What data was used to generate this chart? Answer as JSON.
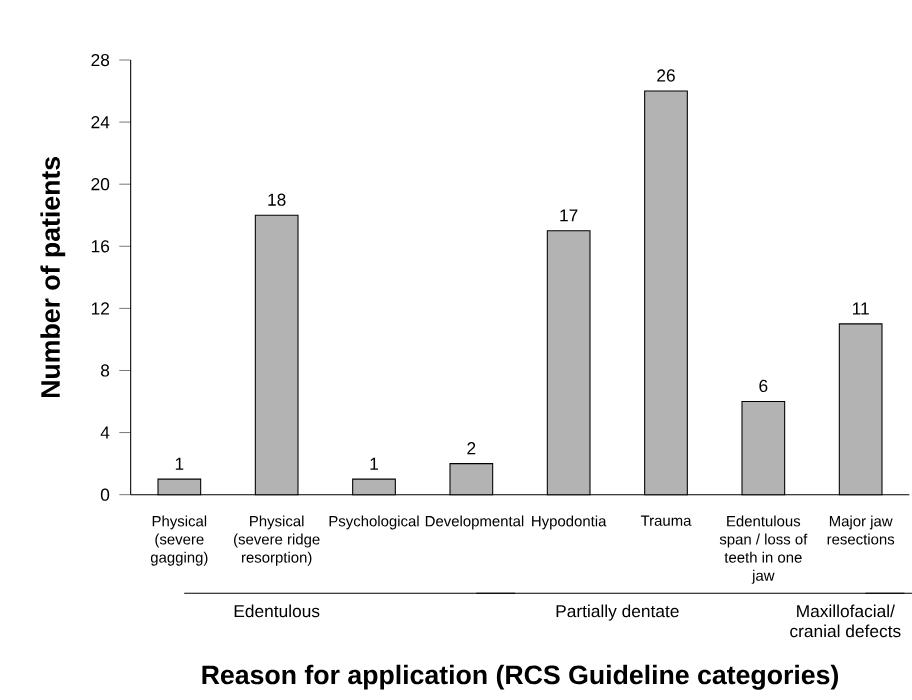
{
  "chart_data": {
    "type": "bar",
    "categories": [
      "Physical (severe gagging)",
      "Physical (severe ridge resorption)",
      "Psychological",
      "Developmental",
      "Hypodontia",
      "Trauma",
      "Edentulous span / loss of teeth in one jaw",
      "Major jaw resections"
    ],
    "values": [
      1,
      18,
      1,
      2,
      17,
      26,
      6,
      11
    ],
    "color": "#b3b3b3",
    "data_labels": true,
    "ylim": [
      0,
      28
    ],
    "yticks": [
      0,
      4,
      8,
      12,
      16,
      20,
      24,
      28
    ],
    "xlabel": "Reason for application (RCS Guideline categories)",
    "ylabel": "Number of patients",
    "annotations": [
      "Edentulous",
      "Partially dentate",
      "Maxillofacial/ cranial defects"
    ],
    "grid": false
  }
}
